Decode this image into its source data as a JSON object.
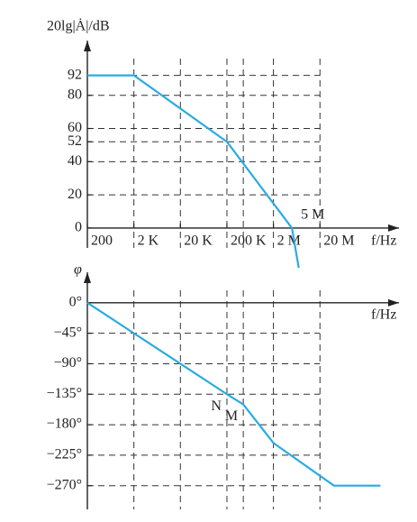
{
  "chart_data": [
    {
      "type": "line",
      "ylabel": "20lg|Ȧ|/dB",
      "xlabel": "f/Hz",
      "log_x": true,
      "xlim": [
        200,
        1000000000
      ],
      "ylim": [
        -12,
        113
      ],
      "xticks": [
        {
          "value": 200,
          "label": "200"
        },
        {
          "value": 2000,
          "label": "2 K"
        },
        {
          "value": 20000,
          "label": "20 K"
        },
        {
          "value": 200000,
          "label": "200 K"
        },
        {
          "value": 2000000,
          "label": "2 M"
        },
        {
          "value": 20000000,
          "label": "20 M"
        }
      ],
      "xgrid": [
        2000,
        20000,
        200000,
        450000,
        2000000,
        20000000
      ],
      "yticks": [
        0,
        20,
        40,
        52,
        60,
        80,
        92
      ],
      "grid": "dashed",
      "annotations": [
        {
          "text": "5 M",
          "x": 5000000,
          "y": 0
        }
      ],
      "series": [
        {
          "color": "#29abe2",
          "x": [
            200,
            2000,
            200000,
            5000000,
            7000000
          ],
          "values": [
            92,
            92,
            52,
            0,
            -24
          ]
        }
      ]
    },
    {
      "type": "line",
      "ylabel": "φ",
      "xlabel": "f/Hz",
      "log_x": true,
      "xlim": [
        200,
        1000000000
      ],
      "ylim": [
        -305,
        45
      ],
      "xgrid": [
        2000,
        20000,
        200000,
        450000,
        2000000,
        20000000
      ],
      "yticks": [
        {
          "value": 0,
          "label": "0°"
        },
        {
          "value": -45,
          "label": "−45°"
        },
        {
          "value": -90,
          "label": "−90°"
        },
        {
          "value": -135,
          "label": "−135°"
        },
        {
          "value": -180,
          "label": "−180°"
        },
        {
          "value": -225,
          "label": "−225°"
        },
        {
          "value": -270,
          "label": "−270°"
        }
      ],
      "grid": "dashed",
      "annotations": [
        {
          "text": "N",
          "x": 200000,
          "y": -135
        },
        {
          "text": "M",
          "x": 450000,
          "y": -150
        }
      ],
      "series": [
        {
          "color": "#29abe2",
          "x": [
            200,
            2000,
            20000,
            200000,
            450000,
            2000000,
            40000000,
            400000000
          ],
          "values": [
            0,
            -45,
            -90,
            -135,
            -150,
            -207,
            -270,
            -270
          ]
        }
      ]
    }
  ]
}
